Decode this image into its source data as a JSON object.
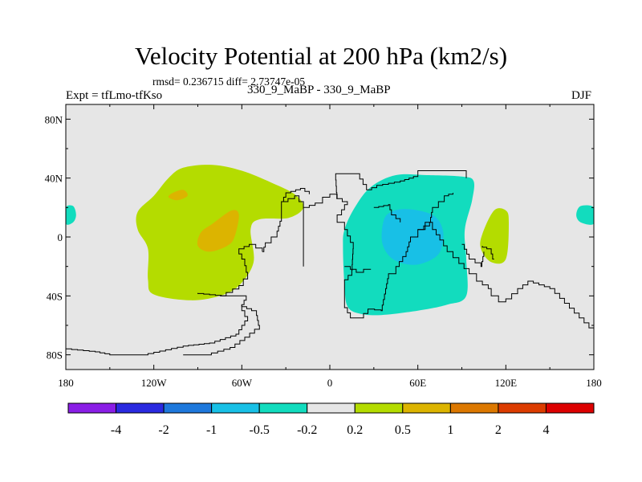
{
  "chart_data": {
    "type": "heatmap",
    "title": "Velocity Potential at 200 hPa (km2/s)",
    "stats_text": "rmsd= 0.236715  diff= 2.73747e-05",
    "left_label": "Expt = tfLmo-tfKso",
    "center_label": "330_9_MaBP - 330_9_MaBP",
    "right_label": "DJF",
    "x_range": [
      -180,
      180
    ],
    "y_range": [
      -90,
      90
    ],
    "x_ticks": [
      {
        "value": -180,
        "label": "180"
      },
      {
        "value": -120,
        "label": "120W"
      },
      {
        "value": -60,
        "label": "60W"
      },
      {
        "value": 0,
        "label": "0"
      },
      {
        "value": 60,
        "label": "60E"
      },
      {
        "value": 120,
        "label": "120E"
      },
      {
        "value": 180,
        "label": "180"
      }
    ],
    "y_ticks": [
      {
        "value": 80,
        "label": "80N"
      },
      {
        "value": 40,
        "label": "40N"
      },
      {
        "value": 0,
        "label": "0"
      },
      {
        "value": -40,
        "label": "40S"
      },
      {
        "value": -80,
        "label": "80S"
      }
    ],
    "colorbar": {
      "colors": [
        "#8a1ee6",
        "#2a2ae0",
        "#1e78dc",
        "#18c0e6",
        "#12dcbe",
        "#e6e6e6",
        "#b4dc00",
        "#dcb400",
        "#dc7800",
        "#dc3c00",
        "#dc0000"
      ],
      "boundaries": [
        "-4",
        "-2",
        "-1",
        "-0.5",
        "-0.2",
        "0.2",
        "0.5",
        "1",
        "2",
        "4"
      ]
    },
    "regions": [
      {
        "name": "positive-anomaly-west-pacific",
        "level": "0.2 to 0.5",
        "color": "#b4dc00",
        "lonlat": [
          [
            -110,
            40
          ],
          [
            -100,
            47
          ],
          [
            -80,
            49
          ],
          [
            -60,
            45
          ],
          [
            -40,
            37
          ],
          [
            -24,
            29
          ],
          [
            -18,
            20
          ],
          [
            -28,
            13
          ],
          [
            -48,
            12
          ],
          [
            -54,
            5
          ],
          [
            -52,
            -17
          ],
          [
            -62,
            -33
          ],
          [
            -75,
            -40
          ],
          [
            -95,
            -43
          ],
          [
            -120,
            -39
          ],
          [
            -124,
            -29
          ],
          [
            -124,
            -8
          ],
          [
            -131,
            5
          ],
          [
            -131,
            17
          ],
          [
            -120,
            28
          ]
        ]
      },
      {
        "name": "positive-core-north",
        "level": "0.5 to 1",
        "color": "#dcb400",
        "lonlat": [
          [
            -107,
            30
          ],
          [
            -100,
            32
          ],
          [
            -97,
            28
          ],
          [
            -104,
            25
          ],
          [
            -110,
            27
          ]
        ]
      },
      {
        "name": "positive-core-central",
        "level": "0.5 to 1",
        "color": "#dcb400",
        "lonlat": [
          [
            -67,
            18
          ],
          [
            -62,
            15
          ],
          [
            -65,
            0
          ],
          [
            -70,
            -6
          ],
          [
            -82,
            -10
          ],
          [
            -90,
            -6
          ],
          [
            -88,
            3
          ],
          [
            -80,
            9
          ]
        ]
      },
      {
        "name": "positive-anomaly-east-pacific",
        "level": "0.2 to 0.5",
        "color": "#b4dc00",
        "lonlat": [
          [
            112,
            18
          ],
          [
            120,
            18
          ],
          [
            122,
            10
          ],
          [
            120,
            -15
          ],
          [
            110,
            -17
          ],
          [
            103,
            -8
          ],
          [
            104,
            2
          ]
        ]
      },
      {
        "name": "negative-anomaly-indian-ocean",
        "level": "-0.5 to -0.2",
        "color": "#12dcbe",
        "lonlat": [
          [
            45,
            42
          ],
          [
            66,
            42
          ],
          [
            90,
            41
          ],
          [
            98,
            38
          ],
          [
            97,
            25
          ],
          [
            92,
            5
          ],
          [
            93,
            -15
          ],
          [
            93,
            -40
          ],
          [
            80,
            -46
          ],
          [
            60,
            -50
          ],
          [
            35,
            -53
          ],
          [
            20,
            -52
          ],
          [
            12,
            -47
          ],
          [
            10,
            -33
          ],
          [
            9,
            -8
          ],
          [
            10,
            5
          ],
          [
            17,
            20
          ],
          [
            28,
            34
          ]
        ]
      },
      {
        "name": "negative-core-indian-ocean",
        "level": "-1 to -0.5",
        "color": "#18c0e6",
        "lonlat": [
          [
            40,
            16
          ],
          [
            52,
            19
          ],
          [
            70,
            15
          ],
          [
            77,
            5
          ],
          [
            76,
            -8
          ],
          [
            70,
            -15
          ],
          [
            57,
            -19
          ],
          [
            43,
            -15
          ],
          [
            36,
            -5
          ],
          [
            36,
            8
          ]
        ]
      },
      {
        "name": "negative-anomaly-dateline-west",
        "level": "-0.5 to -0.2",
        "color": "#12dcbe",
        "lonlat": [
          [
            -180,
            20
          ],
          [
            -175,
            21
          ],
          [
            -173,
            15
          ],
          [
            -175,
            10
          ],
          [
            -180,
            9
          ]
        ]
      },
      {
        "name": "negative-anomaly-dateline-east",
        "level": "-0.5 to -0.2",
        "color": "#12dcbe",
        "lonlat": [
          [
            180,
            20
          ],
          [
            171,
            21
          ],
          [
            168,
            15
          ],
          [
            171,
            10
          ],
          [
            180,
            9
          ]
        ]
      }
    ],
    "coastlines": [
      [
        [
          -18,
          -20
        ],
        [
          -18,
          20
        ],
        [
          -10,
          23
        ],
        [
          -5,
          27
        ],
        [
          0,
          29
        ],
        [
          5,
          26
        ],
        [
          12,
          22
        ],
        [
          8,
          15
        ],
        [
          5,
          10
        ],
        [
          10,
          5
        ],
        [
          16,
          -8
        ],
        [
          15,
          -26
        ],
        [
          10,
          -32
        ],
        [
          10,
          -48
        ],
        [
          14,
          -55
        ],
        [
          20,
          -55
        ],
        [
          26,
          -49
        ],
        [
          35,
          -50
        ],
        [
          38,
          -35
        ],
        [
          40,
          -25
        ],
        [
          45,
          -20
        ],
        [
          52,
          -10
        ],
        [
          55,
          0
        ],
        [
          60,
          5
        ],
        [
          65,
          10
        ],
        [
          70,
          5
        ],
        [
          75,
          -2
        ],
        [
          80,
          -10
        ],
        [
          88,
          -18
        ],
        [
          95,
          -25
        ],
        [
          100,
          -30
        ],
        [
          108,
          -35
        ],
        [
          110,
          -40
        ],
        [
          115,
          -44
        ],
        [
          120,
          -42
        ],
        [
          128,
          -35
        ],
        [
          135,
          -30
        ],
        [
          150,
          -35
        ],
        [
          160,
          -45
        ],
        [
          170,
          -55
        ],
        [
          180,
          -65
        ]
      ],
      [
        [
          -180,
          -76
        ],
        [
          -160,
          -78
        ],
        [
          -150,
          -80
        ],
        [
          -128,
          -80
        ],
        [
          -100,
          -74
        ],
        [
          -82,
          -72
        ],
        [
          -64,
          -66
        ],
        [
          -60,
          -60
        ],
        [
          -56,
          -54
        ],
        [
          -60,
          -46
        ],
        [
          -57,
          -40
        ],
        [
          -70,
          -40
        ],
        [
          -90,
          -38
        ]
      ],
      [
        [
          -100,
          -80
        ],
        [
          -85,
          -80
        ],
        [
          -68,
          -75
        ],
        [
          -58,
          -68
        ],
        [
          -48,
          -60
        ],
        [
          -50,
          -50
        ],
        [
          -60,
          -46
        ]
      ],
      [
        [
          -75,
          -40
        ],
        [
          -62,
          -33
        ],
        [
          -56,
          -24
        ],
        [
          -58,
          -15
        ],
        [
          -62,
          -8
        ],
        [
          -55,
          -5
        ],
        [
          -46,
          -10
        ]
      ],
      [
        [
          -46,
          -10
        ],
        [
          -44,
          -4
        ],
        [
          -36,
          4
        ],
        [
          -33,
          14
        ],
        [
          -33,
          24
        ],
        [
          -24,
          28
        ],
        [
          -18,
          20
        ]
      ],
      [
        [
          -33,
          24
        ],
        [
          -30,
          30
        ],
        [
          -20,
          33
        ],
        [
          -14,
          29
        ]
      ],
      [
        [
          5,
          26
        ],
        [
          4,
          43
        ],
        [
          18,
          43
        ],
        [
          25,
          32
        ],
        [
          32,
          35
        ],
        [
          48,
          38
        ],
        [
          54,
          40
        ],
        [
          60,
          42
        ],
        [
          60,
          45
        ],
        [
          75,
          45
        ],
        [
          90,
          45
        ],
        [
          93,
          40
        ]
      ],
      [
        [
          10,
          -20
        ],
        [
          18,
          -24
        ],
        [
          23,
          -22
        ],
        [
          28,
          -22
        ]
      ],
      [
        [
          30,
          20
        ],
        [
          40,
          22
        ],
        [
          42,
          15
        ],
        [
          48,
          10
        ]
      ],
      [
        [
          60,
          5
        ],
        [
          68,
          10
        ],
        [
          70,
          20
        ],
        [
          78,
          28
        ],
        [
          84,
          30
        ]
      ],
      [
        [
          90,
          -5
        ],
        [
          95,
          -15
        ],
        [
          103,
          -20
        ],
        [
          105,
          -10
        ]
      ],
      [
        [
          112,
          -15
        ],
        [
          110,
          -8
        ],
        [
          104,
          -6
        ]
      ]
    ]
  }
}
